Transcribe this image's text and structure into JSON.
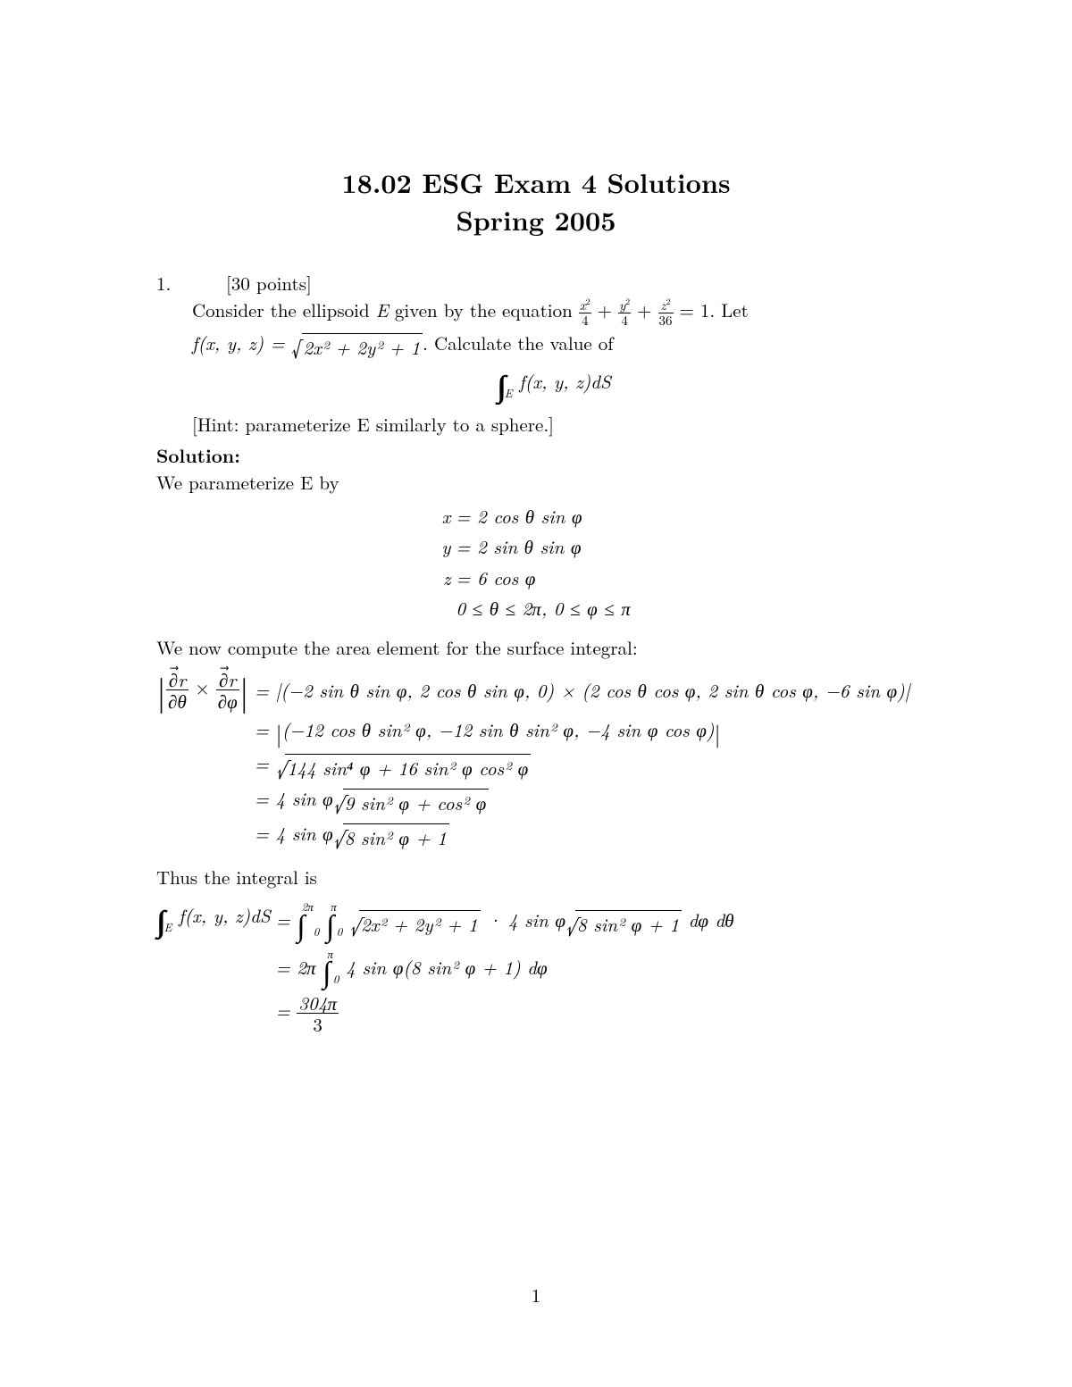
{
  "title_line1": "18.02 ESG Exam 4 Solutions",
  "title_line2": "Spring 2005",
  "problem_number": "1.",
  "points": "[30 points]",
  "text": {
    "consider_prefix": "Consider the ellipsoid ",
    "E": "E",
    "given_by": " given by the equation ",
    "eq_one": " = 1.  Let",
    "fdef_prefix": "f",
    "fdef_args": "(x, y, z) = ",
    "fdef_suffix": ".  Calculate the value of",
    "hint": "[Hint: parameterize E similarly to a sphere.]",
    "solution": "Solution:",
    "param": "We parameterize E by",
    "area_elem": "We now compute the area element for the surface integral:",
    "thus": "Thus the integral is"
  },
  "frac": {
    "x2": "x",
    "four1": "4",
    "y2": "y",
    "four2": "4",
    "z2": "z",
    "thirtysix": "36",
    "dr": "∂",
    "rvec": "r",
    "dtheta": "∂θ",
    "dphi": "∂φ",
    "threeohfour": "304π",
    "three": "3"
  },
  "sqrt_fdef": "2x² + 2y² + 1",
  "integral_display": "f(x, y, z)dS",
  "param_lines": {
    "x_l": "x",
    "x_r": " = 2 cos θ sin φ",
    "y_l": "y",
    "y_r": " = 2 sin θ sin φ",
    "z_l": "z",
    "z_r": " = 6 cos φ",
    "range_l": "",
    "range_r": "  0 ≤ θ ≤ 2π, 0 ≤ φ ≤ π"
  },
  "cross_lines": {
    "l1r": " = |(−2 sin θ sin φ, 2 cos θ sin φ, 0) × (2 cos θ cos φ, 2 sin θ cos φ, −6 sin φ)|",
    "l2r_pre": " = ",
    "l2r_body": "(−12 cos θ sin² φ, −12 sin θ sin² φ, −4 sin φ cos φ)",
    "l3r_body": "144 sin⁴ φ + 16 sin² φ cos² φ",
    "l4r_pre": " = 4 sin φ",
    "l4r_body": "9 sin² φ + cos² φ",
    "l5r_pre": " = 4 sin φ",
    "l5r_body": "8 sin² φ + 1"
  },
  "final_lines": {
    "lhs_suffix": "f(x, y, z)dS",
    "l1_pre": " = ",
    "l1_sqrt1": "2x² + 2y² + 1",
    "l1_mid": " · 4 sin φ",
    "l1_sqrt2": "8 sin² φ + 1",
    "l1_tail": " dφ dθ",
    "l2_pre": " = 2π",
    "l2_body": "4 sin φ(8 sin² φ + 1) dφ",
    "l3_pre": " = "
  },
  "bounds": {
    "zero": "0",
    "twopi": "2π",
    "pi": "π",
    "E": "E"
  },
  "page_number": "1"
}
